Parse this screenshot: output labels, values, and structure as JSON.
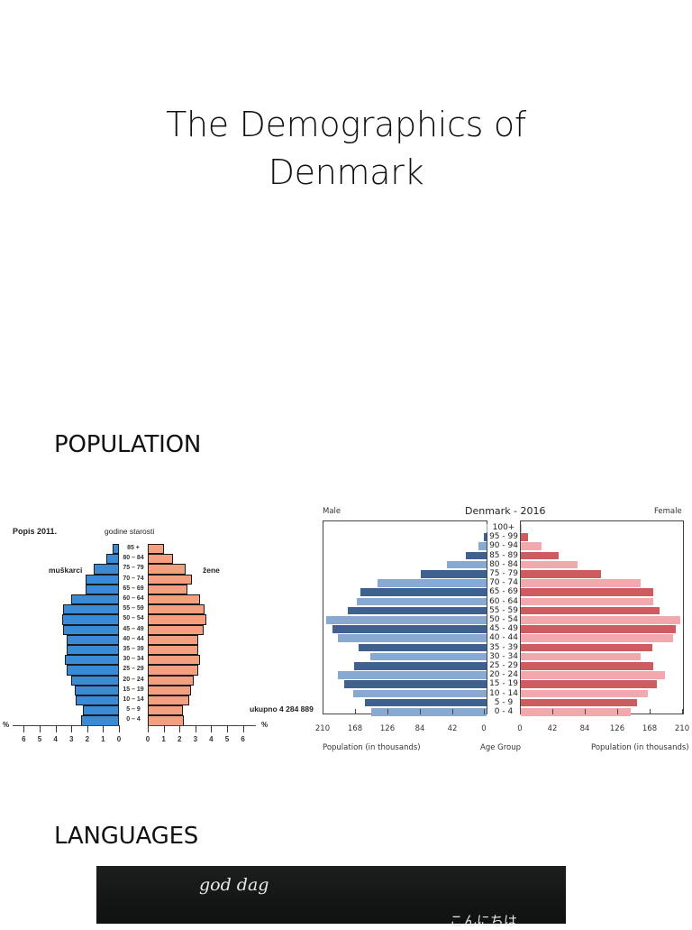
{
  "slide": {
    "title_line1": "The Demographics of",
    "title_line2": "Denmark"
  },
  "sections": {
    "population": "POPULATION",
    "languages": "LANGUAGES"
  },
  "languages_image": {
    "visible_text": "god dag",
    "partial_text": "こんにちは"
  },
  "chart_data": [
    {
      "type": "bar",
      "subtype": "population-pyramid",
      "title": "Popis 2011.",
      "center_label": "godine starosti",
      "left_label": "muškarci",
      "right_label": "žene",
      "total_label": "ukupno 4 284 889",
      "unit_label": "%",
      "categories": [
        "85 +",
        "80 – 84",
        "75 – 79",
        "70 – 74",
        "65 – 69",
        "60 – 64",
        "55 – 59",
        "50 – 54",
        "45 – 49",
        "40 – 44",
        "35 – 39",
        "30 – 34",
        "25 – 29",
        "20 – 24",
        "15 – 19",
        "10 – 14",
        "5 – 9",
        "0 – 4"
      ],
      "series": [
        {
          "name": "muškarci",
          "color": "#3b8ad6",
          "values": [
            0.4,
            0.8,
            1.6,
            2.1,
            2.1,
            3.0,
            3.5,
            3.6,
            3.5,
            3.3,
            3.3,
            3.4,
            3.3,
            3.0,
            2.8,
            2.7,
            2.3,
            2.4
          ]
        },
        {
          "name": "žene",
          "color": "#f4a080",
          "values": [
            1.0,
            1.6,
            2.4,
            2.8,
            2.5,
            3.3,
            3.6,
            3.7,
            3.5,
            3.2,
            3.2,
            3.3,
            3.2,
            2.9,
            2.7,
            2.6,
            2.2,
            2.3
          ]
        }
      ],
      "xticks_left": [
        "6",
        "5",
        "4",
        "3",
        "2",
        "1",
        "0"
      ],
      "xticks_right": [
        "0",
        "1",
        "2",
        "3",
        "4",
        "5",
        "6"
      ],
      "xlim": [
        0,
        6
      ]
    },
    {
      "type": "bar",
      "subtype": "population-pyramid",
      "title": "Denmark - 2016",
      "left_label": "Male",
      "right_label": "Female",
      "xlabel_left": "Population (in thousands)",
      "xlabel_center": "Age Group",
      "xlabel_right": "Population (in thousands)",
      "categories": [
        "100+",
        "95 - 99",
        "90 - 94",
        "85 - 89",
        "80 - 84",
        "75 - 79",
        "70 - 74",
        "65 - 69",
        "60 - 64",
        "55 - 59",
        "50 - 54",
        "45 - 49",
        "40 - 44",
        "35 - 39",
        "30 - 34",
        "25 - 29",
        "20 - 24",
        "15 - 19",
        "10 - 14",
        "5 - 9",
        "0 - 4"
      ],
      "series": [
        {
          "name": "Male",
          "colors": [
            "#3f6190",
            "#87a9d2"
          ],
          "values": [
            0.5,
            3,
            11,
            27,
            51,
            85,
            141,
            163,
            168,
            180,
            208,
            199,
            193,
            166,
            151,
            172,
            192,
            184,
            173,
            158,
            149
          ]
        },
        {
          "name": "Female",
          "colors": [
            "#cc5c60",
            "#f2a8ac"
          ],
          "values": [
            1,
            9,
            27,
            49,
            73,
            104,
            155,
            172,
            172,
            180,
            206,
            201,
            197,
            170,
            155,
            172,
            187,
            176,
            164,
            150,
            142
          ]
        }
      ],
      "xticks": [
        "210",
        "168",
        "126",
        "84",
        "42",
        "0"
      ],
      "xlim": [
        0,
        210
      ],
      "grid": false
    }
  ]
}
